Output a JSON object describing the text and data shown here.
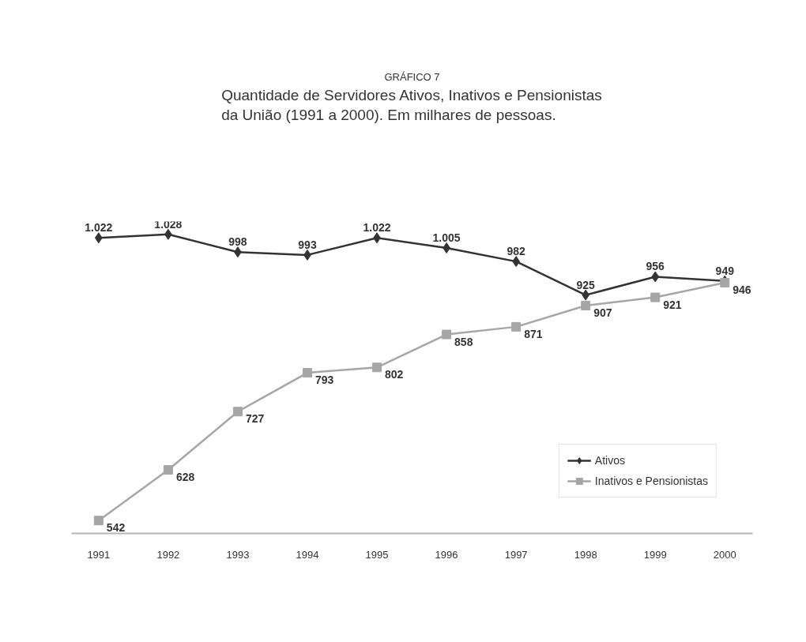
{
  "chart_data": {
    "type": "line",
    "title": "GRÁFICO 7",
    "subtitle": "Quantidade de Servidores Ativos, Inativos e Pensionistas\nda União (1991 a 2000).  Em milhares de pessoas.",
    "categories": [
      "1991",
      "1992",
      "1993",
      "1994",
      "1995",
      "1996",
      "1997",
      "1998",
      "1999",
      "2000"
    ],
    "series": [
      {
        "name": "Ativos",
        "color": "#333333",
        "marker": "diamond",
        "values": [
          1022,
          1028,
          998,
          993,
          1022,
          1005,
          982,
          925,
          956,
          949
        ],
        "value_labels": [
          "1.022",
          "1.028",
          "998",
          "993",
          "1.022",
          "1.005",
          "982",
          "925",
          "956",
          "949"
        ]
      },
      {
        "name": "Inativos e Pensionistas",
        "color": "#a6a6a6",
        "marker": "square",
        "values": [
          542,
          628,
          727,
          793,
          802,
          858,
          871,
          907,
          921,
          946
        ],
        "value_labels": [
          "542",
          "628",
          "727",
          "793",
          "802",
          "858",
          "871",
          "907",
          "921",
          "946"
        ]
      }
    ],
    "tick_labels": "x",
    "grid": false,
    "legend": "bottom right",
    "line_style": "solid"
  }
}
